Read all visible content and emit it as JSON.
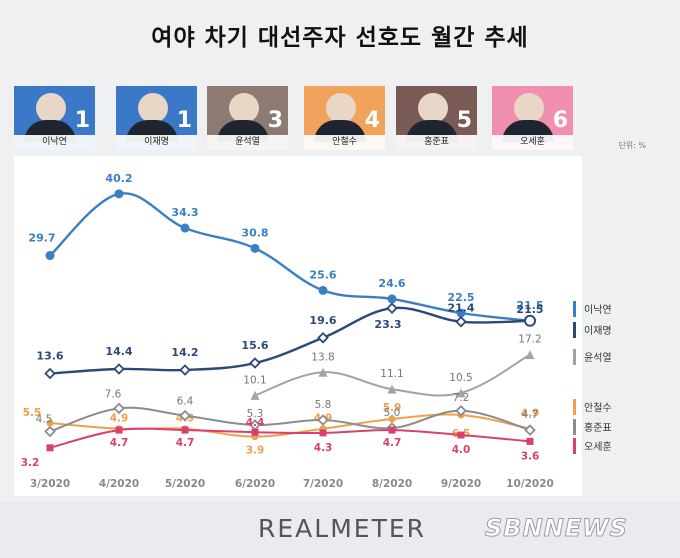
{
  "title": "여야 차기 대선주자 선호도 월간 추세",
  "unit": "단위: %",
  "candidates": [
    {
      "name": "이낙연",
      "rank": "1",
      "bg": "#3b78c8"
    },
    {
      "name": "이재명",
      "rank": "1",
      "bg": "#3b78c8"
    },
    {
      "name": "윤석열",
      "rank": "3",
      "bg": "#8d7a72"
    },
    {
      "name": "안철수",
      "rank": "4",
      "bg": "#f2a35b"
    },
    {
      "name": "홍준표",
      "rank": "5",
      "bg": "#7a5a55"
    },
    {
      "name": "오세훈",
      "rank": "6",
      "bg": "#f08fb0"
    }
  ],
  "brand": "REALMETER",
  "watermark": "SBNNEWS",
  "chart_data": {
    "type": "line",
    "categories": [
      "3/2020",
      "4/2020",
      "5/2020",
      "6/2020",
      "7/2020",
      "8/2020",
      "9/2020",
      "10/2020"
    ],
    "series": [
      {
        "name": "이낙연",
        "color": "#3a7fc4",
        "values": [
          29.7,
          40.2,
          34.3,
          30.8,
          25.6,
          24.6,
          22.5,
          21.5
        ],
        "labels": [
          "29.7",
          "40.2",
          "34.3",
          "30.8",
          "25.6",
          "24.6",
          "22.5",
          "21.5"
        ]
      },
      {
        "name": "이재명",
        "color": "#2c4a78",
        "values": [
          13.6,
          14.4,
          14.2,
          15.6,
          19.6,
          23.3,
          21.4,
          21.5
        ],
        "labels": [
          "13.6",
          "14.4",
          "14.2",
          "15.6",
          "19.6",
          "23.3",
          "21.4",
          "21.5"
        ]
      },
      {
        "name": "윤석열",
        "color": "#a3a3a3",
        "values": [
          null,
          null,
          null,
          10.1,
          13.8,
          11.1,
          10.5,
          17.2
        ],
        "labels": [
          null,
          null,
          null,
          "10.1",
          "13.8",
          "11.1",
          "10.5",
          "17.2"
        ]
      },
      {
        "name": "안철수",
        "color": "#f0a04b",
        "values": [
          5.5,
          4.9,
          4.9,
          3.9,
          4.9,
          5.9,
          6.5,
          4.9
        ],
        "labels": [
          "5.5",
          "4.9",
          "4.9",
          "3.9",
          "4.9",
          "5.9",
          "6.5",
          "4.9"
        ]
      },
      {
        "name": "홍준표",
        "color": "#8c8c8c",
        "values": [
          4.5,
          7.6,
          6.4,
          5.3,
          5.8,
          5.0,
          7.2,
          4.7
        ],
        "labels": [
          "4.5",
          "7.6",
          "6.4",
          "5.3",
          "5.8",
          "5.0",
          "7.2",
          "4.7"
        ]
      },
      {
        "name": "오세훈",
        "color": "#d9406f",
        "values": [
          3.2,
          4.7,
          4.7,
          4.4,
          4.3,
          4.7,
          4.0,
          3.6
        ],
        "labels": [
          "3.2",
          "4.7",
          "4.7",
          "4.4",
          "4.3",
          "4.7",
          "4.0",
          "3.6"
        ]
      }
    ],
    "grid": false,
    "legend_position": "right"
  }
}
